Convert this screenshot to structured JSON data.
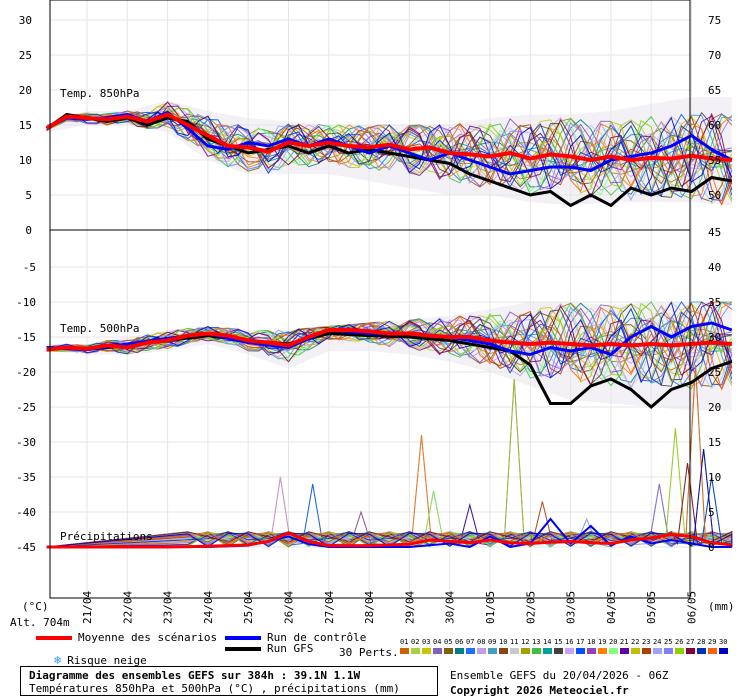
{
  "header": {
    "unit_left": "(°C)",
    "unit_right": "(mm)",
    "altitude": "Alt. 704m"
  },
  "legend": {
    "mean_label": "Moyenne des scénarios",
    "control_label": "Run de contrôle",
    "gfs_label": "Run GFS",
    "snow_label": "Risque neige",
    "perts_label": "30 Perts.",
    "mean_color": "#ff0000",
    "control_color": "#0000ff",
    "gfs_color": "#000000",
    "snow_icon": "snowflake-icon"
  },
  "footer": {
    "title": "Diagramme des ensembles GEFS sur 384h : 39.1N 1.1W",
    "subtitle": "Températures 850hPa et 500hPa (°C) , précipitations (mm)",
    "ensemble_info": "Ensemble GEFS du 20/04/2026 - 06Z",
    "copyright": "Copyright 2026 Meteociel.fr"
  },
  "perturbations": {
    "numbers": [
      "01",
      "02",
      "03",
      "04",
      "05",
      "06",
      "07",
      "08",
      "09",
      "10",
      "11",
      "12",
      "13",
      "14",
      "15",
      "16",
      "17",
      "18",
      "19",
      "20",
      "21",
      "22",
      "23",
      "24",
      "25",
      "26",
      "27",
      "28",
      "29",
      "30"
    ],
    "colors": [
      "#d06000",
      "#a8d040",
      "#c8c800",
      "#8060c0",
      "#806000",
      "#008080",
      "#2070ff",
      "#c0a0e0",
      "#40a0c0",
      "#8b4513",
      "#c8c8c8",
      "#a0a000",
      "#40c040",
      "#00a0a0",
      "#404040",
      "#c8a0ff",
      "#0050ff",
      "#9040c0",
      "#ff8000",
      "#80ff80",
      "#6000a0",
      "#c0c000",
      "#b04000",
      "#a0a0ff",
      "#8080ff",
      "#90d000",
      "#800040",
      "#0030c0",
      "#ff6000",
      "#0000c0"
    ]
  },
  "chart_data": {
    "type": "line",
    "x_dates": [
      "21/04",
      "22/04",
      "23/04",
      "24/04",
      "25/04",
      "26/04",
      "27/04",
      "28/04",
      "29/04",
      "30/04",
      "01/05",
      "02/05",
      "03/05",
      "04/05",
      "05/05",
      "06/05"
    ],
    "x_days": [
      0,
      16
    ],
    "upper_panel": {
      "title": "Temp. 850hPa",
      "left_axis": {
        "ylim": [
          0,
          30
        ],
        "ticks": [
          5,
          10,
          15,
          20,
          25,
          30
        ]
      },
      "right_axis": {
        "ticks": [
          50,
          55,
          60,
          65,
          70,
          75
        ]
      },
      "mean": [
        [
          -1,
          14.5
        ],
        [
          -0.5,
          16.2
        ],
        [
          0,
          16
        ],
        [
          0.5,
          15.8
        ],
        [
          1,
          16.2
        ],
        [
          1.5,
          15.5
        ],
        [
          2,
          16.5
        ],
        [
          2.5,
          15
        ],
        [
          3,
          13.5
        ],
        [
          3.5,
          12
        ],
        [
          4,
          11.8
        ],
        [
          4.5,
          11.2
        ],
        [
          5,
          12.5
        ],
        [
          5.5,
          12
        ],
        [
          6,
          12.5
        ],
        [
          6.5,
          12
        ],
        [
          7,
          11.8
        ],
        [
          7.5,
          12.2
        ],
        [
          8,
          11.5
        ],
        [
          8.5,
          11.8
        ],
        [
          9,
          11
        ],
        [
          9.5,
          10.8
        ],
        [
          10,
          10.5
        ],
        [
          10.5,
          11
        ],
        [
          11,
          10.2
        ],
        [
          11.5,
          10.8
        ],
        [
          12,
          10.5
        ],
        [
          12.5,
          10
        ],
        [
          13,
          10.5
        ],
        [
          13.5,
          10
        ],
        [
          14,
          10.3
        ],
        [
          14.5,
          10.2
        ],
        [
          15,
          10.6
        ],
        [
          15.5,
          10.2
        ],
        [
          16,
          10
        ]
      ],
      "control": [
        [
          -1,
          14.5
        ],
        [
          -0.5,
          16
        ],
        [
          0,
          15.8
        ],
        [
          0.5,
          16
        ],
        [
          1,
          16.5
        ],
        [
          1.5,
          15.5
        ],
        [
          2,
          16.8
        ],
        [
          2.5,
          14.5
        ],
        [
          3,
          12
        ],
        [
          3.5,
          11.5
        ],
        [
          4,
          12.5
        ],
        [
          4.5,
          12
        ],
        [
          5,
          13
        ],
        [
          5.5,
          12
        ],
        [
          6,
          13
        ],
        [
          6.5,
          12
        ],
        [
          7,
          11
        ],
        [
          7.5,
          12
        ],
        [
          8,
          11
        ],
        [
          8.5,
          10
        ],
        [
          9,
          11
        ],
        [
          9.5,
          10
        ],
        [
          10,
          9
        ],
        [
          10.5,
          8
        ],
        [
          11,
          8.5
        ],
        [
          11.5,
          9
        ],
        [
          12,
          9
        ],
        [
          12.5,
          8.5
        ],
        [
          13,
          10
        ],
        [
          13.5,
          10.5
        ],
        [
          14,
          11
        ],
        [
          14.5,
          12
        ],
        [
          15,
          13.5
        ],
        [
          15.5,
          11.5
        ],
        [
          16,
          10
        ]
      ],
      "gfs": [
        [
          -1,
          14.5
        ],
        [
          -0.5,
          16.5
        ],
        [
          0,
          16
        ],
        [
          0.5,
          15.5
        ],
        [
          1,
          16
        ],
        [
          1.5,
          15
        ],
        [
          2,
          16
        ],
        [
          2.5,
          15.5
        ],
        [
          3,
          13
        ],
        [
          3.5,
          12
        ],
        [
          4,
          11
        ],
        [
          4.5,
          11.5
        ],
        [
          5,
          12
        ],
        [
          5.5,
          11
        ],
        [
          6,
          12
        ],
        [
          6.5,
          11
        ],
        [
          7,
          11.5
        ],
        [
          7.5,
          11
        ],
        [
          8,
          10.5
        ],
        [
          8.5,
          10
        ],
        [
          9,
          9.5
        ],
        [
          9.5,
          8
        ],
        [
          10,
          7
        ],
        [
          10.5,
          6
        ],
        [
          11,
          5
        ],
        [
          11.5,
          5.5
        ],
        [
          12,
          3.5
        ],
        [
          12.5,
          5
        ],
        [
          13,
          3.5
        ],
        [
          13.5,
          6
        ],
        [
          14,
          5
        ],
        [
          14.5,
          6
        ],
        [
          15,
          5.5
        ],
        [
          15.5,
          7.5
        ],
        [
          16,
          7
        ]
      ],
      "spread_min": [
        [
          -1,
          14
        ],
        [
          0,
          15
        ],
        [
          1,
          15
        ],
        [
          2,
          14
        ],
        [
          3,
          10
        ],
        [
          4,
          8
        ],
        [
          5,
          8
        ],
        [
          6,
          8
        ],
        [
          7,
          7
        ],
        [
          8,
          6
        ],
        [
          9,
          5
        ],
        [
          10,
          5
        ],
        [
          11,
          4
        ],
        [
          12,
          3.5
        ],
        [
          13,
          4
        ],
        [
          14,
          4
        ],
        [
          15,
          4
        ],
        [
          16,
          3.5
        ]
      ],
      "spread_max": [
        [
          -1,
          15
        ],
        [
          0,
          17
        ],
        [
          1,
          17
        ],
        [
          2,
          18.5
        ],
        [
          3,
          17
        ],
        [
          4,
          16
        ],
        [
          5,
          15.5
        ],
        [
          6,
          15
        ],
        [
          7,
          15
        ],
        [
          8,
          15
        ],
        [
          9,
          15
        ],
        [
          10,
          16
        ],
        [
          11,
          16.5
        ],
        [
          12,
          16.5
        ],
        [
          13,
          17
        ],
        [
          14,
          18
        ],
        [
          15,
          19
        ],
        [
          16,
          19
        ]
      ]
    },
    "lower_panel": {
      "title": "Temp. 500hPa",
      "left_axis": {
        "ylim": [
          -50,
          0
        ],
        "ticks": [
          -5,
          -10,
          -15,
          -20,
          -25,
          -30,
          -35,
          -40,
          -45
        ]
      },
      "right_axis": {
        "ticks": [
          0,
          5,
          10,
          15,
          20,
          25,
          30,
          35,
          40,
          45
        ]
      },
      "mean": [
        [
          -1,
          -16.8
        ],
        [
          -0.5,
          -16.5
        ],
        [
          0,
          -16.7
        ],
        [
          0.5,
          -16.2
        ],
        [
          1,
          -16.5
        ],
        [
          1.5,
          -15.8
        ],
        [
          2,
          -15.5
        ],
        [
          2.5,
          -14.8
        ],
        [
          3,
          -14.5
        ],
        [
          3.5,
          -14.8
        ],
        [
          4,
          -15.5
        ],
        [
          4.5,
          -15.8
        ],
        [
          5,
          -16.2
        ],
        [
          5.5,
          -15
        ],
        [
          6,
          -14
        ],
        [
          6.5,
          -14
        ],
        [
          7,
          -14.2
        ],
        [
          7.5,
          -14.5
        ],
        [
          8,
          -14.5
        ],
        [
          8.5,
          -14.8
        ],
        [
          9,
          -15
        ],
        [
          9.5,
          -15
        ],
        [
          10,
          -15.5
        ],
        [
          10.5,
          -15.8
        ],
        [
          11,
          -16
        ],
        [
          11.5,
          -15.8
        ],
        [
          12,
          -16
        ],
        [
          12.5,
          -16.2
        ],
        [
          13,
          -16
        ],
        [
          13.5,
          -16.2
        ],
        [
          14,
          -16
        ],
        [
          14.5,
          -16.2
        ],
        [
          15,
          -16
        ],
        [
          15.5,
          -15.8
        ],
        [
          16,
          -16
        ]
      ],
      "control": [
        [
          -1,
          -16.5
        ],
        [
          0,
          -16.8
        ],
        [
          1,
          -16
        ],
        [
          2,
          -15.2
        ],
        [
          3,
          -14.5
        ],
        [
          4,
          -15.8
        ],
        [
          5,
          -16.5
        ],
        [
          6,
          -14
        ],
        [
          7,
          -14.5
        ],
        [
          8,
          -14.5
        ],
        [
          9,
          -15
        ],
        [
          10,
          -16
        ],
        [
          10.5,
          -17
        ],
        [
          11,
          -17.5
        ],
        [
          11.5,
          -16.5
        ],
        [
          12,
          -17
        ],
        [
          12.5,
          -16.5
        ],
        [
          13,
          -17.5
        ],
        [
          13.5,
          -15
        ],
        [
          14,
          -13.5
        ],
        [
          14.5,
          -15
        ],
        [
          15,
          -13.5
        ],
        [
          15.5,
          -13
        ],
        [
          16,
          -14
        ]
      ],
      "gfs": [
        [
          -1,
          -16.5
        ],
        [
          0,
          -16.8
        ],
        [
          1,
          -16.2
        ],
        [
          2,
          -15.5
        ],
        [
          3,
          -14.8
        ],
        [
          4,
          -15.5
        ],
        [
          5,
          -16
        ],
        [
          6,
          -14.5
        ],
        [
          7,
          -14.8
        ],
        [
          8,
          -15
        ],
        [
          9,
          -15.5
        ],
        [
          10,
          -16.5
        ],
        [
          10.5,
          -17
        ],
        [
          11,
          -19
        ],
        [
          11.5,
          -24.5
        ],
        [
          12,
          -24.5
        ],
        [
          12.5,
          -22
        ],
        [
          13,
          -21
        ],
        [
          13.5,
          -22.5
        ],
        [
          14,
          -25
        ],
        [
          14.5,
          -22.5
        ],
        [
          15,
          -21.5
        ],
        [
          15.5,
          -19.5
        ],
        [
          16,
          -18.5
        ]
      ],
      "spread_min": [
        [
          -1,
          -17
        ],
        [
          0,
          -17.5
        ],
        [
          1,
          -17.5
        ],
        [
          2,
          -17
        ],
        [
          3,
          -16
        ],
        [
          4,
          -17.5
        ],
        [
          5,
          -19.5
        ],
        [
          6,
          -17
        ],
        [
          7,
          -17
        ],
        [
          8,
          -17.5
        ],
        [
          9,
          -18.5
        ],
        [
          10,
          -20
        ],
        [
          11,
          -22
        ],
        [
          12,
          -24
        ],
        [
          13,
          -24.5
        ],
        [
          14,
          -25
        ],
        [
          15,
          -25.5
        ],
        [
          16,
          -25.5
        ]
      ],
      "spread_max": [
        [
          -1,
          -16
        ],
        [
          0,
          -16
        ],
        [
          1,
          -15
        ],
        [
          2,
          -14
        ],
        [
          3,
          -13.5
        ],
        [
          4,
          -14
        ],
        [
          5,
          -14
        ],
        [
          6,
          -13.5
        ],
        [
          7,
          -13
        ],
        [
          8,
          -12.5
        ],
        [
          9,
          -12
        ],
        [
          10,
          -11
        ],
        [
          11,
          -10
        ],
        [
          12,
          -10
        ],
        [
          13,
          -10.5
        ],
        [
          14,
          -10
        ],
        [
          15,
          -10
        ],
        [
          16,
          -10
        ]
      ]
    },
    "precip_panel": {
      "title": "Précipitations",
      "ylim": [
        0,
        45
      ],
      "mean": [
        [
          -1,
          0
        ],
        [
          0,
          0
        ],
        [
          1,
          0
        ],
        [
          2,
          0
        ],
        [
          3,
          0.1
        ],
        [
          4,
          0.3
        ],
        [
          4.5,
          0.8
        ],
        [
          5,
          2
        ],
        [
          5.5,
          0.8
        ],
        [
          6,
          0.2
        ],
        [
          7,
          0.2
        ],
        [
          8,
          0.4
        ],
        [
          8.5,
          1
        ],
        [
          9,
          0.8
        ],
        [
          9.5,
          0.6
        ],
        [
          10,
          1
        ],
        [
          10.5,
          0.6
        ],
        [
          11,
          0.5
        ],
        [
          11.5,
          0.7
        ],
        [
          12,
          0.8
        ],
        [
          12.5,
          0.6
        ],
        [
          13,
          0.5
        ],
        [
          13.5,
          1
        ],
        [
          14,
          1.3
        ],
        [
          14.5,
          1.8
        ],
        [
          15,
          1.5
        ],
        [
          15.5,
          0.6
        ],
        [
          16,
          0.3
        ]
      ],
      "control": [
        [
          -1,
          0
        ],
        [
          3,
          0
        ],
        [
          4,
          0.2
        ],
        [
          5,
          1.5
        ],
        [
          5.5,
          0.4
        ],
        [
          6,
          0
        ],
        [
          8,
          0
        ],
        [
          9,
          0.5
        ],
        [
          9.5,
          0
        ],
        [
          10,
          1.5
        ],
        [
          10.5,
          0
        ],
        [
          11,
          0.5
        ],
        [
          11.5,
          4
        ],
        [
          12,
          0.5
        ],
        [
          12.5,
          3
        ],
        [
          13,
          0.2
        ],
        [
          13.5,
          1.5
        ],
        [
          14,
          0.5
        ],
        [
          14.5,
          1
        ],
        [
          15,
          0.5
        ],
        [
          15.5,
          0
        ],
        [
          16,
          0
        ]
      ],
      "spikes": [
        [
          4.8,
          10
        ],
        [
          5.6,
          9
        ],
        [
          6.8,
          5
        ],
        [
          8.3,
          16
        ],
        [
          8.6,
          8
        ],
        [
          9.5,
          6
        ],
        [
          10.6,
          24
        ],
        [
          11.3,
          6.5
        ],
        [
          12.4,
          4
        ],
        [
          14.2,
          9
        ],
        [
          14.6,
          17
        ],
        [
          14.9,
          12
        ],
        [
          15.5,
          10
        ],
        [
          15.1,
          26
        ],
        [
          15.3,
          14
        ]
      ]
    }
  }
}
